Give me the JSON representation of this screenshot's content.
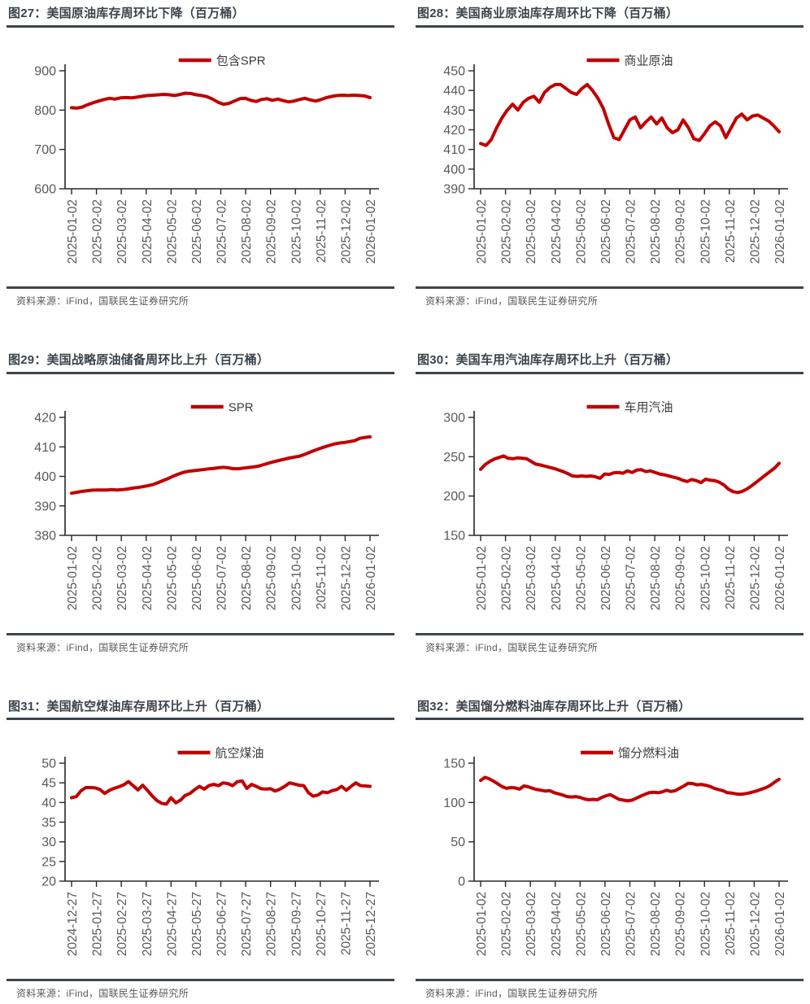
{
  "page": {
    "type": "research-report-chart-grid",
    "source_note": "资料来源：iFind，国联民生证券研究所"
  },
  "colors": {
    "series_red": "#c00000",
    "title_text": "#3d434b",
    "rule_dark": "#3f454d",
    "axis_line": "#262626",
    "tick_label": "#595959",
    "legend_text": "#3d3d3d",
    "source_text": "#595959"
  },
  "chart_data": [
    {
      "id": "fig27",
      "type": "line",
      "title": "图27：美国原油库存周环比下降（百万桶）",
      "legend": [
        "包含SPR"
      ],
      "legend_position": "top-center",
      "grid": false,
      "source": "资料来源：iFind，国联民生证券研究所",
      "ylim": [
        600,
        900
      ],
      "yticks": [
        600,
        700,
        800,
        900
      ],
      "x_labels": [
        "2025-01-02",
        "2025-02-02",
        "2025-03-02",
        "2025-04-02",
        "2025-05-02",
        "2025-06-02",
        "2025-07-02",
        "2025-08-02",
        "2025-09-02",
        "2025-10-02",
        "2025-11-02",
        "2025-12-02",
        "2026-01-02"
      ],
      "values": [
        806,
        805,
        808,
        814,
        819,
        823,
        827,
        830,
        828,
        831,
        832,
        831,
        833,
        835,
        837,
        838,
        839,
        840,
        839,
        837,
        840,
        843,
        842,
        839,
        837,
        834,
        828,
        820,
        815,
        817,
        823,
        829,
        830,
        825,
        822,
        827,
        829,
        825,
        828,
        824,
        821,
        823,
        827,
        830,
        826,
        823,
        827,
        832,
        835,
        837,
        838,
        837,
        838,
        837,
        836,
        832
      ]
    },
    {
      "id": "fig28",
      "type": "line",
      "title": "图28：美国商业原油库存周环比下降（百万桶）",
      "legend": [
        "商业原油"
      ],
      "legend_position": "top-center",
      "grid": false,
      "source": "资料来源：iFind，国联民生证券研究所",
      "ylim": [
        390,
        450
      ],
      "yticks": [
        390,
        400,
        410,
        420,
        430,
        440,
        450
      ],
      "x_labels": [
        "2025-01-02",
        "2025-02-02",
        "2025-03-02",
        "2025-04-02",
        "2025-05-02",
        "2025-06-02",
        "2025-07-02",
        "2025-08-02",
        "2025-09-02",
        "2025-10-02",
        "2025-11-02",
        "2025-12-02",
        "2026-01-02"
      ],
      "values": [
        413,
        412,
        415,
        421,
        426,
        430,
        433,
        430,
        434,
        436,
        437,
        434,
        439,
        441.5,
        443,
        443,
        441,
        439,
        438,
        441,
        443,
        440,
        436,
        431,
        423,
        416,
        415,
        420,
        425,
        426.5,
        421,
        424,
        426.5,
        423,
        426,
        421,
        418.5,
        420,
        425,
        421,
        415.5,
        414.5,
        418,
        422,
        424,
        422,
        416,
        421,
        426,
        428,
        425,
        427,
        427.5,
        426,
        424.5,
        422,
        419
      ]
    },
    {
      "id": "fig29",
      "type": "line",
      "title": "图29：美国战略原油储备周环比上升（百万桶）",
      "legend": [
        "SPR"
      ],
      "legend_position": "top-center",
      "grid": false,
      "source": "资料来源：iFind，国联民生证券研究所",
      "ylim": [
        380,
        420
      ],
      "yticks": [
        380,
        390,
        400,
        410,
        420
      ],
      "x_labels": [
        "2025-01-02",
        "2025-02-02",
        "2025-03-02",
        "2025-04-02",
        "2025-05-02",
        "2025-06-02",
        "2025-07-02",
        "2025-08-02",
        "2025-09-02",
        "2025-10-02",
        "2025-11-02",
        "2025-12-02",
        "2026-01-02"
      ],
      "values": [
        394.3,
        394.6,
        394.9,
        395.1,
        395.3,
        395.4,
        395.4,
        395.4,
        395.5,
        395.4,
        395.5,
        395.7,
        396,
        396.2,
        396.5,
        396.8,
        397.2,
        397.8,
        398.5,
        399.2,
        400,
        400.7,
        401.3,
        401.7,
        401.9,
        402.1,
        402.3,
        402.5,
        402.7,
        402.9,
        403.1,
        402.9,
        402.6,
        402.6,
        402.8,
        403,
        403.2,
        403.5,
        404,
        404.5,
        405,
        405.4,
        405.8,
        406.2,
        406.5,
        406.8,
        407.4,
        408.1,
        408.8,
        409.4,
        410,
        410.5,
        411,
        411.3,
        411.5,
        411.8,
        412.1,
        412.9,
        413.2,
        413.4
      ]
    },
    {
      "id": "fig30",
      "type": "line",
      "title": "图30：美国车用汽油库存周环比上升（百万桶）",
      "legend": [
        "车用汽油"
      ],
      "legend_position": "top-center",
      "grid": false,
      "source": "资料来源：iFind，国联民生证券研究所",
      "ylim": [
        150,
        300
      ],
      "yticks": [
        150,
        200,
        250,
        300
      ],
      "x_labels": [
        "2025-01-02",
        "2025-02-02",
        "2025-03-02",
        "2025-04-02",
        "2025-05-02",
        "2025-06-02",
        "2025-07-02",
        "2025-08-02",
        "2025-09-02",
        "2025-10-02",
        "2025-11-02",
        "2025-12-02",
        "2026-01-02"
      ],
      "values": [
        234,
        240,
        244,
        247,
        249,
        251,
        248,
        247.5,
        248.5,
        248,
        247.5,
        244,
        240.5,
        239.5,
        238,
        236.5,
        235,
        233,
        231,
        228.5,
        225.5,
        225,
        225.5,
        225,
        225.5,
        224.5,
        222.5,
        228,
        227.5,
        229.5,
        230,
        229,
        232,
        230,
        233,
        233.5,
        231,
        232,
        230,
        228,
        227,
        225.5,
        224,
        222.5,
        220,
        218.5,
        221,
        219.5,
        217,
        221.5,
        220,
        219.5,
        217.5,
        214,
        208.5,
        205.5,
        204.5,
        206,
        209,
        213,
        217.5,
        222,
        226.5,
        231,
        235.5,
        241.5
      ]
    },
    {
      "id": "fig31",
      "type": "line",
      "title": "图31：美国航空煤油库存周环比上升（百万桶）",
      "legend": [
        "航空煤油"
      ],
      "legend_position": "top-center",
      "grid": false,
      "source": "资料来源：iFind，国联民生证券研究所",
      "ylim": [
        20,
        50
      ],
      "yticks": [
        20,
        25,
        30,
        35,
        40,
        45,
        50
      ],
      "x_labels": [
        "2024-12-27",
        "2025-01-27",
        "2025-02-27",
        "2025-03-27",
        "2025-04-27",
        "2025-05-27",
        "2025-06-27",
        "2025-07-27",
        "2025-08-27",
        "2025-09-27",
        "2025-10-27",
        "2025-11-27",
        "2025-12-27"
      ],
      "values": [
        41.2,
        41.5,
        43,
        43.8,
        43.8,
        43.7,
        43.3,
        42.3,
        43.1,
        43.6,
        44,
        44.5,
        45.3,
        44.3,
        43.2,
        44.4,
        43.1,
        41.7,
        40.5,
        39.8,
        39.6,
        41.2,
        39.9,
        40.6,
        41.8,
        42.3,
        43.3,
        44.1,
        43.4,
        44.3,
        44.6,
        44.3,
        45,
        44.8,
        44.3,
        45.3,
        45.5,
        43.6,
        44.6,
        44.1,
        43.5,
        43.4,
        43.5,
        42.9,
        43.4,
        44.1,
        45,
        44.7,
        44.4,
        44.3,
        42.5,
        41.6,
        41.9,
        42.7,
        42.5,
        43,
        43.3,
        44.1,
        43.1,
        44.1,
        45,
        44.3,
        44.2,
        44.1
      ]
    },
    {
      "id": "fig32",
      "type": "line",
      "title": "图32：美国馏分燃料油库存周环比上升（百万桶）",
      "legend": [
        "馏分燃料油"
      ],
      "legend_position": "top-center",
      "grid": false,
      "source": "资料来源：iFind，国联民生证券研究所",
      "ylim": [
        0,
        150
      ],
      "yticks": [
        0,
        50,
        100,
        150
      ],
      "x_labels": [
        "2025-01-02",
        "2025-02-02",
        "2025-03-02",
        "2025-04-02",
        "2025-05-02",
        "2025-06-02",
        "2025-07-02",
        "2025-08-02",
        "2025-09-02",
        "2025-10-02",
        "2025-11-02",
        "2025-12-02",
        "2026-01-02"
      ],
      "values": [
        128,
        132,
        130,
        127,
        123.5,
        120,
        118,
        119,
        118.5,
        117,
        121,
        120,
        118,
        116.5,
        115.5,
        114.5,
        115,
        112.5,
        111,
        109.5,
        107.5,
        107,
        107.5,
        106.5,
        104.5,
        103.5,
        104,
        103.5,
        106.5,
        108.5,
        110,
        107,
        104,
        103,
        102,
        103,
        105.5,
        108,
        110.5,
        112.5,
        113,
        112.5,
        113.5,
        115.5,
        114,
        115,
        118,
        121,
        124.5,
        124,
        122.5,
        123,
        122,
        120.5,
        118,
        116.5,
        115,
        112.5,
        112,
        111,
        110.5,
        111,
        112,
        113.5,
        115,
        117,
        119,
        122,
        126,
        129.5
      ]
    }
  ]
}
